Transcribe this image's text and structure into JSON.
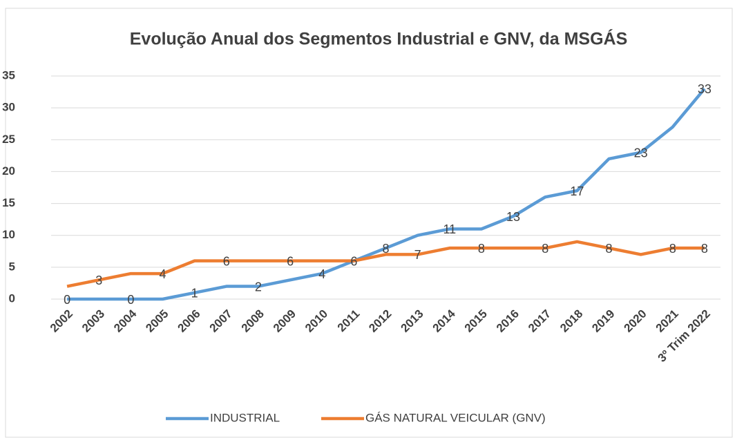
{
  "chart_data": {
    "type": "line",
    "title": "Evolução Anual dos Segmentos Industrial e GNV, da MSGÁS",
    "categories": [
      "2002",
      "2003",
      "2004",
      "2005",
      "2006",
      "2007",
      "2008",
      "2009",
      "2010",
      "2011",
      "2012",
      "2013",
      "2014",
      "2015",
      "2016",
      "2017",
      "2018",
      "2019",
      "2020",
      "2021",
      "3º Trim 2022"
    ],
    "series": [
      {
        "name": "INDUSTRIAL",
        "color": "#5b9bd5",
        "values": [
          0,
          0,
          0,
          0,
          1,
          2,
          2,
          3,
          4,
          6,
          8,
          10,
          11,
          11,
          13,
          16,
          17,
          22,
          23,
          27,
          33
        ],
        "data_labels": [
          0,
          null,
          0,
          null,
          1,
          null,
          2,
          null,
          4,
          null,
          8,
          null,
          11,
          null,
          13,
          null,
          17,
          null,
          23,
          null,
          33
        ]
      },
      {
        "name": "GÁS NATURAL VEICULAR (GNV)",
        "color": "#ed7d31",
        "values": [
          2,
          3,
          4,
          4,
          6,
          6,
          6,
          6,
          6,
          6,
          7,
          7,
          8,
          8,
          8,
          8,
          9,
          8,
          7,
          8,
          8
        ],
        "data_labels": [
          null,
          3,
          null,
          4,
          null,
          6,
          null,
          6,
          null,
          6,
          null,
          7,
          null,
          8,
          null,
          8,
          null,
          8,
          null,
          8,
          8
        ]
      }
    ],
    "ylim": [
      0,
      35
    ],
    "yticks": [
      0,
      5,
      10,
      15,
      20,
      25,
      30,
      35
    ],
    "grid": true,
    "legend": "bottom"
  }
}
